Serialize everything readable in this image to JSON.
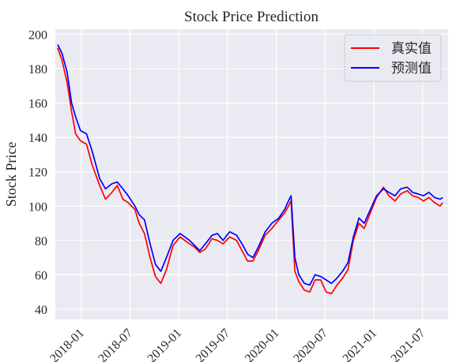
{
  "chart_data": {
    "type": "line",
    "title": "Stock Price Prediction",
    "xlabel": "",
    "ylabel": "Stock Price",
    "xlim": [
      "2017-09-25",
      "2021-10-05"
    ],
    "ylim": [
      34,
      203
    ],
    "grid": true,
    "legend_position": "top-right",
    "y_ticks": [
      40,
      60,
      80,
      100,
      120,
      140,
      160,
      180,
      200
    ],
    "x_ticks": [
      {
        "date": "2018-01-01",
        "label": "2018-01"
      },
      {
        "date": "2018-07-01",
        "label": "2018-07"
      },
      {
        "date": "2019-01-01",
        "label": "2019-01"
      },
      {
        "date": "2019-07-01",
        "label": "2019-07"
      },
      {
        "date": "2020-01-01",
        "label": "2020-01"
      },
      {
        "date": "2020-07-01",
        "label": "2020-07"
      },
      {
        "date": "2021-01-01",
        "label": "2021-01"
      },
      {
        "date": "2021-07-01",
        "label": "2021-07"
      }
    ],
    "x": [
      "2017-10-04",
      "2017-10-20",
      "2017-11-08",
      "2017-11-25",
      "2017-12-10",
      "2017-12-28",
      "2018-01-20",
      "2018-02-10",
      "2018-03-10",
      "2018-04-01",
      "2018-04-25",
      "2018-05-15",
      "2018-06-05",
      "2018-06-25",
      "2018-07-20",
      "2018-08-05",
      "2018-08-25",
      "2018-09-15",
      "2018-10-05",
      "2018-10-25",
      "2018-11-15",
      "2018-12-10",
      "2019-01-05",
      "2019-02-10",
      "2019-03-01",
      "2019-03-20",
      "2019-04-10",
      "2019-05-05",
      "2019-05-25",
      "2019-06-15",
      "2019-07-10",
      "2019-08-05",
      "2019-08-25",
      "2019-09-15",
      "2019-10-05",
      "2019-10-25",
      "2019-11-20",
      "2019-12-15",
      "2020-01-10",
      "2020-02-01",
      "2020-02-15",
      "2020-02-25",
      "2020-03-10",
      "2020-03-25",
      "2020-04-15",
      "2020-05-05",
      "2020-05-25",
      "2020-06-15",
      "2020-07-05",
      "2020-07-25",
      "2020-08-15",
      "2020-09-05",
      "2020-09-25",
      "2020-10-15",
      "2020-11-05",
      "2020-11-25",
      "2020-12-15",
      "2021-01-10",
      "2021-02-05",
      "2021-02-25",
      "2021-03-20",
      "2021-04-10",
      "2021-05-05",
      "2021-05-25",
      "2021-06-15",
      "2021-07-05",
      "2021-07-25",
      "2021-08-15",
      "2021-09-05",
      "2021-09-15"
    ],
    "series": [
      {
        "name": "真实值",
        "color": "#ff0000",
        "values": [
          192,
          185,
          172,
          155,
          142,
          138,
          136,
          124,
          112,
          104,
          108,
          112,
          104,
          102,
          98,
          90,
          84,
          70,
          59,
          55,
          63,
          77,
          82,
          78,
          76,
          73,
          75,
          81,
          80,
          78,
          82,
          80,
          74,
          68,
          68,
          74,
          83,
          87,
          92,
          96,
          100,
          103,
          62,
          56,
          51,
          50,
          57,
          57,
          50,
          49,
          54,
          58,
          63,
          80,
          90,
          87,
          95,
          105,
          111,
          106,
          103,
          107,
          109,
          106,
          105,
          103,
          105,
          102,
          100,
          102
        ],
        "line_width": 1.7
      },
      {
        "name": "预测值",
        "color": "#0000ff",
        "values": [
          194,
          189,
          178,
          160,
          152,
          144,
          142,
          132,
          116,
          110,
          113,
          114,
          110,
          106,
          100,
          95,
          92,
          78,
          66,
          62,
          70,
          80,
          84,
          80,
          77,
          74,
          78,
          83,
          84,
          80,
          85,
          83,
          78,
          72,
          70,
          76,
          85,
          90,
          93,
          98,
          103,
          106,
          70,
          60,
          55,
          54,
          60,
          59,
          57,
          55,
          58,
          62,
          67,
          82,
          93,
          90,
          97,
          106,
          110,
          108,
          106,
          110,
          111,
          108,
          107,
          106,
          108,
          105,
          104,
          105
        ],
        "line_width": 1.7
      }
    ]
  },
  "colors": {
    "plot_background": "#eaeaf2",
    "grid": "#ffffff",
    "text": "#262626",
    "legend_border": "#cccccc"
  }
}
